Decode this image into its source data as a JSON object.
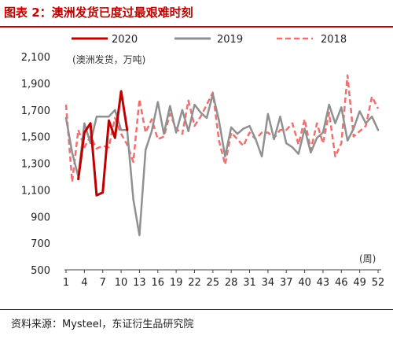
{
  "title": "图表 2：澳洲发货已度过最艰难时刻",
  "source": "资料来源：Mysteel，东证衍生品研究院",
  "chart_data": {
    "type": "line",
    "title": "图表 2：澳洲发货已度过最艰难时刻",
    "ylabel": "(澳洲发货，万吨)",
    "xlabel": "(周)",
    "xlim": [
      1,
      52
    ],
    "ylim": [
      500,
      2100
    ],
    "yticks": [
      500,
      700,
      900,
      1100,
      1300,
      1500,
      1700,
      1900,
      2100
    ],
    "ytick_labels": [
      "500",
      "700",
      "900",
      "1,100",
      "1,300",
      "1,500",
      "1,700",
      "1,900",
      "2,100"
    ],
    "xticks": [
      1,
      4,
      7,
      10,
      13,
      16,
      19,
      22,
      25,
      28,
      31,
      34,
      37,
      40,
      43,
      46,
      49,
      52
    ],
    "grid": false,
    "legend_position": "top",
    "series": [
      {
        "name": "2020",
        "color": "#c00000",
        "style": "solid",
        "x": [
          3,
          4,
          5,
          6,
          7,
          8,
          9,
          10,
          11
        ],
        "y": [
          1180,
          1530,
          1600,
          1060,
          1080,
          1620,
          1490,
          1840,
          1550
        ]
      },
      {
        "name": "2019",
        "color": "#909090",
        "style": "solid",
        "x": [
          1,
          2,
          3,
          4,
          5,
          6,
          7,
          8,
          9,
          10,
          11,
          12,
          13,
          14,
          15,
          16,
          17,
          18,
          19,
          20,
          21,
          22,
          23,
          24,
          25,
          26,
          27,
          28,
          29,
          30,
          31,
          32,
          33,
          34,
          35,
          36,
          37,
          38,
          39,
          40,
          41,
          42,
          43,
          44,
          45,
          46,
          47,
          48,
          49,
          50,
          51,
          52
        ],
        "y": [
          1640,
          1380,
          1200,
          1600,
          1450,
          1650,
          1650,
          1650,
          1700,
          1550,
          1550,
          1030,
          760,
          1400,
          1540,
          1760,
          1520,
          1730,
          1530,
          1700,
          1540,
          1740,
          1680,
          1640,
          1820,
          1620,
          1350,
          1570,
          1520,
          1560,
          1580,
          1480,
          1350,
          1670,
          1480,
          1650,
          1450,
          1420,
          1370,
          1560,
          1380,
          1490,
          1530,
          1740,
          1600,
          1720,
          1470,
          1560,
          1690,
          1600,
          1650,
          1550
        ]
      },
      {
        "name": "2018",
        "color": "#f07070",
        "style": "dashed",
        "x": [
          1,
          2,
          3,
          4,
          5,
          6,
          7,
          8,
          9,
          10,
          11,
          12,
          13,
          14,
          15,
          16,
          17,
          18,
          19,
          20,
          21,
          22,
          23,
          24,
          25,
          26,
          27,
          28,
          29,
          30,
          31,
          32,
          33,
          34,
          35,
          36,
          37,
          38,
          39,
          40,
          41,
          42,
          43,
          44,
          45,
          46,
          47,
          48,
          49,
          50,
          51,
          52
        ],
        "y": [
          1740,
          1160,
          1550,
          1420,
          1500,
          1410,
          1430,
          1420,
          1640,
          1520,
          1440,
          1310,
          1780,
          1530,
          1630,
          1480,
          1500,
          1670,
          1560,
          1520,
          1770,
          1580,
          1650,
          1740,
          1830,
          1470,
          1290,
          1530,
          1480,
          1430,
          1530,
          1480,
          1530,
          1530,
          1490,
          1550,
          1550,
          1600,
          1440,
          1630,
          1400,
          1600,
          1450,
          1680,
          1350,
          1450,
          1960,
          1500,
          1540,
          1580,
          1800,
          1710
        ]
      }
    ]
  }
}
